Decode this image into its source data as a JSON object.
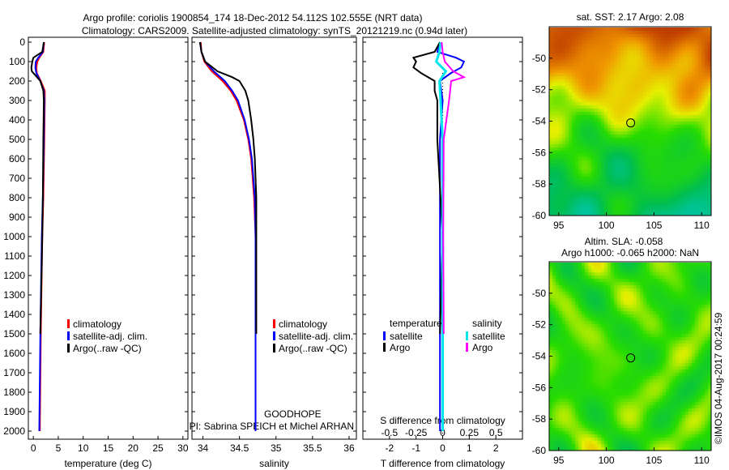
{
  "title_line1": "Argo profile: coriolis 1900854_174 18-Dec-2012 54.112S 102.555E (NRT data)",
  "title_line2": "Climatology: CARS2009. Satellite-adjusted climatology: synTS_20121219.nc (0.94d later)",
  "credit": "PI: Sabrina SPEICH et Michel ARHAN",
  "project": "GOODHOPE",
  "stamp": "©IMOS 04-Aug-2017 00:24:59",
  "colors": {
    "clim": "#ff0000",
    "sat": "#0000ff",
    "argo": "#000000",
    "sat_s": "#00e5ee",
    "argo_s": "#ff00ff"
  },
  "chart_data": [
    {
      "type": "line",
      "id": "temperature",
      "xlabel": "temperature (deg C)",
      "xlim": [
        -1,
        31
      ],
      "xticks": [
        0,
        5,
        10,
        15,
        20,
        25,
        30
      ],
      "ylim": [
        0,
        2050
      ],
      "yticks": [
        0,
        100,
        200,
        300,
        400,
        500,
        600,
        700,
        800,
        900,
        1000,
        1100,
        1200,
        1300,
        1400,
        1500,
        1600,
        1700,
        1800,
        1900,
        2000
      ],
      "legend": [
        "climatology",
        "satellite-adj. clim.",
        "Argo(..raw -QC)"
      ],
      "series": [
        {
          "name": "climatology",
          "color": "#ff0000",
          "depth": [
            0,
            50,
            80,
            100,
            130,
            160,
            200,
            250,
            300,
            500,
            800,
            1000,
            1500,
            2000
          ],
          "values": [
            2.2,
            2.0,
            1.2,
            0.8,
            0.6,
            0.7,
            1.5,
            2.3,
            2.3,
            2.2,
            2.0,
            1.8,
            1.5,
            1.3
          ]
        },
        {
          "name": "satellite-adj. clim.",
          "color": "#0000ff",
          "depth": [
            0,
            50,
            80,
            100,
            130,
            160,
            200,
            250,
            300,
            500,
            800,
            1000,
            1500,
            2000
          ],
          "values": [
            2.1,
            1.9,
            1.0,
            0.5,
            0.4,
            0.6,
            1.4,
            2.1,
            2.2,
            2.1,
            1.9,
            1.7,
            1.4,
            1.2
          ]
        },
        {
          "name": "Argo(..raw -QC)",
          "color": "#000000",
          "depth": [
            0,
            50,
            80,
            100,
            130,
            150,
            170,
            200,
            250,
            300,
            500,
            800,
            1000,
            1500
          ],
          "values": [
            2.1,
            1.8,
            0.0,
            -0.2,
            -0.4,
            -0.3,
            0.4,
            1.4,
            2.0,
            2.1,
            2.0,
            1.9,
            1.8,
            1.4
          ]
        }
      ]
    },
    {
      "type": "line",
      "id": "salinity",
      "xlabel": "salinity",
      "xlim": [
        33.85,
        36.1
      ],
      "xticks": [
        34,
        34.5,
        35,
        35.5,
        36
      ],
      "ylim": [
        0,
        2050
      ],
      "legend": [
        "climatology",
        "satellite-adj. clim.",
        "Argo(..raw -QC)"
      ],
      "series": [
        {
          "name": "climatology",
          "color": "#ff0000",
          "depth": [
            0,
            50,
            100,
            150,
            200,
            250,
            300,
            400,
            500,
            600,
            800,
            1000,
            1500,
            2000
          ],
          "values": [
            33.97,
            33.98,
            34.02,
            34.12,
            34.27,
            34.38,
            34.46,
            34.56,
            34.62,
            34.66,
            34.7,
            34.72,
            34.72,
            34.72
          ]
        },
        {
          "name": "satellite-adj. clim.",
          "color": "#0000ff",
          "depth": [
            0,
            50,
            100,
            150,
            200,
            250,
            300,
            400,
            500,
            600,
            800,
            1000,
            1500,
            2000
          ],
          "values": [
            33.96,
            33.98,
            34.03,
            34.15,
            34.3,
            34.4,
            34.48,
            34.57,
            34.63,
            34.67,
            34.71,
            34.72,
            34.72,
            34.72
          ]
        },
        {
          "name": "Argo(..raw -QC)",
          "color": "#000000",
          "depth": [
            0,
            50,
            100,
            150,
            180,
            200,
            250,
            300,
            400,
            500,
            600,
            800,
            1000,
            1500
          ],
          "values": [
            33.96,
            33.98,
            34.03,
            34.2,
            34.4,
            34.5,
            34.58,
            34.62,
            34.66,
            34.69,
            34.71,
            34.73,
            34.73,
            34.73
          ]
        }
      ]
    },
    {
      "type": "line",
      "id": "difference",
      "xlabel": "T difference from climatology",
      "x2label": "S difference from climatology",
      "xlim": [
        -3,
        3
      ],
      "xticks": [
        -2,
        -1,
        0,
        1,
        2
      ],
      "x2lim": [
        -0.75,
        0.75
      ],
      "x2ticks": [
        -0.5,
        -0.25,
        0,
        0.25,
        0.5
      ],
      "x2ticklabels": [
        "-0.5",
        "-0.25",
        "0",
        "0.25",
        "0.5"
      ],
      "ylim": [
        0,
        2050
      ],
      "legend_headers": [
        "temperature",
        "salinity"
      ],
      "legend": [
        "satellite",
        "Argo",
        "satellite",
        "Argo"
      ],
      "series": [
        {
          "name": "T satellite",
          "color": "#0000ff",
          "axis": "T",
          "depth": [
            0,
            50,
            80,
            100,
            130,
            160,
            200,
            300,
            500,
            1000,
            1500,
            2000
          ],
          "values": [
            -0.1,
            -0.2,
            0.5,
            0.8,
            0.7,
            0.3,
            -0.1,
            0,
            -0.1,
            -0.1,
            -0.1,
            -0.1
          ]
        },
        {
          "name": "T Argo",
          "color": "#000000",
          "axis": "T",
          "depth": [
            0,
            50,
            80,
            100,
            130,
            160,
            200,
            250,
            300,
            500,
            1000,
            1500
          ],
          "values": [
            -0.1,
            -0.3,
            -1.1,
            -1.0,
            -1.1,
            -0.8,
            -0.3,
            -0.3,
            -0.2,
            -0.2,
            0,
            -0.1
          ]
        },
        {
          "name": "S satellite",
          "color": "#00e5ee",
          "axis": "S",
          "depth": [
            0,
            50,
            100,
            150,
            200,
            300,
            500,
            1000,
            1500,
            2000
          ],
          "values": [
            -0.02,
            -0.03,
            -0.06,
            0.03,
            -0.03,
            -0.02,
            0,
            0,
            0,
            0
          ]
        },
        {
          "name": "S Argo",
          "color": "#ff00ff",
          "axis": "S",
          "depth": [
            0,
            50,
            100,
            150,
            180,
            200,
            300,
            500,
            1000,
            1500
          ],
          "values": [
            -0.01,
            0,
            0.02,
            0.1,
            0.2,
            0.08,
            0.06,
            0.01,
            0.005,
            0.01
          ]
        }
      ]
    },
    {
      "type": "heatmap",
      "id": "sst_map",
      "title": "sat. SST: 2.17 Argo: 2.08",
      "xlim": [
        94,
        111
      ],
      "ylim": [
        -60,
        -48
      ],
      "xticks": [
        95,
        100,
        105,
        110
      ],
      "yticks": [
        -50,
        -52,
        -54,
        -56,
        -58,
        -60
      ],
      "float_lon": 102.555,
      "float_lat": -54.112
    },
    {
      "type": "heatmap",
      "id": "sla_map",
      "title": "Altim. SLA: -0.058",
      "subtitle": "Argo h1000: -0.065 h2000: NaN",
      "xlim": [
        94,
        111
      ],
      "ylim": [
        -60,
        -48
      ],
      "xticks": [
        95,
        100,
        105,
        110
      ],
      "yticks": [
        -50,
        -52,
        -54,
        -56,
        -58,
        -60
      ],
      "float_lon": 102.555,
      "float_lat": -54.112
    }
  ]
}
